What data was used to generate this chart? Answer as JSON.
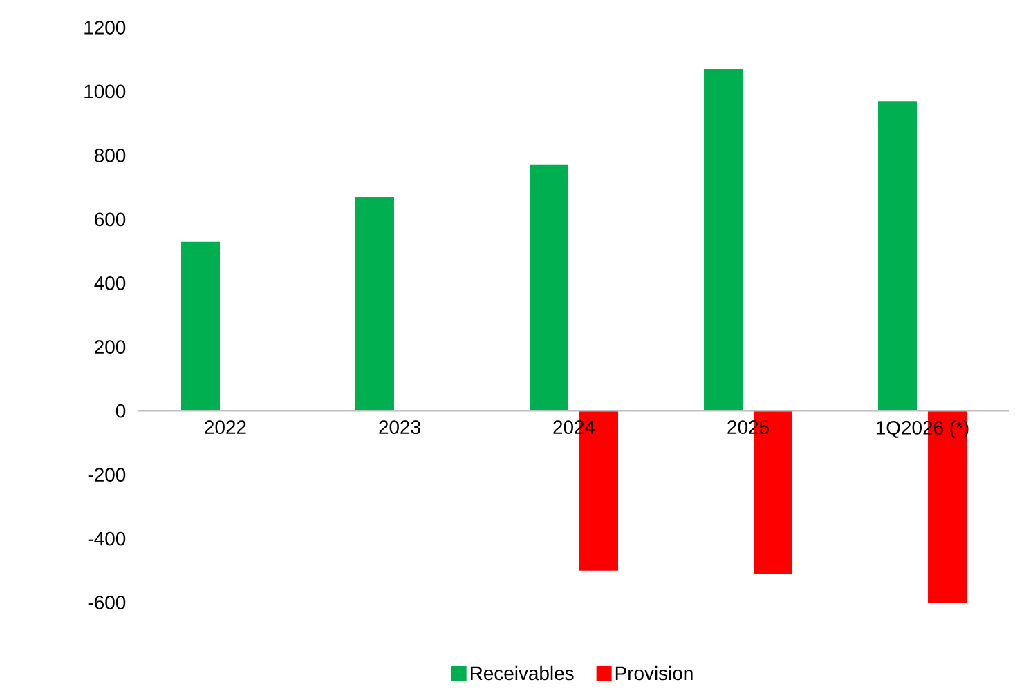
{
  "chart_data": {
    "type": "bar",
    "categories": [
      "2022",
      "2023",
      "2024",
      "2025",
      "1Q2026 (*)"
    ],
    "series": [
      {
        "name": "Receivables",
        "color": "#00b050",
        "values": [
          530,
          670,
          770,
          1070,
          970
        ]
      },
      {
        "name": "Provision",
        "color": "#ff0000",
        "values": [
          null,
          null,
          -500,
          -510,
          -600
        ]
      }
    ],
    "ylim": [
      -600,
      1200
    ],
    "yticks": [
      -600,
      -400,
      -200,
      0,
      200,
      400,
      600,
      800,
      1000,
      1200
    ],
    "grid": false,
    "legend": "bottom"
  }
}
